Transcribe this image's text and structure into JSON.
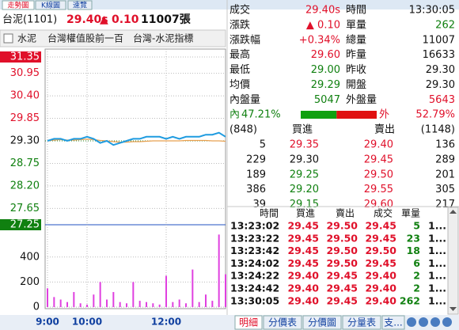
{
  "tabs": [
    "走勢圖",
    "K線圖",
    "速覽"
  ],
  "header": {
    "name": "台泥(1101)",
    "price": "29.40s",
    "arrow": "▲",
    "change": "0.10",
    "volume": "11007張"
  },
  "tags": [
    "水泥",
    "台灣權值股前一百",
    "台灣-水泥指標"
  ],
  "chart": {
    "type": "line",
    "x": [
      "9:00",
      "9:10",
      "9:20",
      "9:30",
      "9:40",
      "9:50",
      "10:00",
      "10:10",
      "10:20",
      "10:30",
      "10:40",
      "10:50",
      "11:00",
      "11:10",
      "11:20",
      "11:30",
      "11:40",
      "11:50",
      "12:00",
      "12:10",
      "12:20",
      "12:30",
      "12:40",
      "12:50",
      "13:00",
      "13:10",
      "13:20",
      "13:30"
    ],
    "series": [
      {
        "color": "#1e9be0",
        "values": [
          29.3,
          29.35,
          29.35,
          29.3,
          29.35,
          29.35,
          29.4,
          29.35,
          29.25,
          29.3,
          29.2,
          29.25,
          29.3,
          29.35,
          29.35,
          29.4,
          29.4,
          29.4,
          29.35,
          29.4,
          29.35,
          29.4,
          29.4,
          29.4,
          29.45,
          29.45,
          29.5,
          29.4
        ]
      },
      {
        "color": "#e8a050",
        "values": [
          29.3,
          29.32,
          29.33,
          29.32,
          29.32,
          29.33,
          29.34,
          29.33,
          29.31,
          29.3,
          29.28,
          29.27,
          29.27,
          29.28,
          29.28,
          29.29,
          29.3,
          29.3,
          29.3,
          29.3,
          29.3,
          29.31,
          29.31,
          29.31,
          29.31,
          29.3,
          29.3,
          29.29
        ]
      }
    ],
    "ylim": [
      27.25,
      31.35
    ],
    "yticks": [
      31.35,
      30.95,
      {
        "value": 30.4,
        "label": "30.40"
      },
      29.85,
      {
        "value": 29.3,
        "label": "29.30"
      },
      28.75,
      {
        "value": 28.2,
        "label": "28.20"
      },
      27.65,
      27.25
    ],
    "volume": {
      "color": "#e040e0",
      "values": [
        150,
        80,
        60,
        40,
        120,
        30,
        20,
        100,
        200,
        60,
        120,
        40,
        30,
        200,
        50,
        40,
        30,
        20,
        250,
        40,
        60,
        30,
        300,
        40,
        100,
        50,
        580,
        262
      ]
    },
    "y2lim": [
      0,
      620
    ],
    "y2ticks": [
      400,
      200,
      0
    ],
    "xticks": [
      "9:00",
      "10:00",
      "12:00"
    ]
  },
  "quote": [
    [
      "成交",
      "29.40s",
      "時間",
      "13:30:05"
    ],
    [
      "漲跌",
      "▲ 0.10",
      "單量",
      "262"
    ],
    [
      "漲跌幅",
      "+0.34%",
      "總量",
      "11007"
    ],
    [
      "最高",
      "29.60",
      "昨量",
      "16633"
    ],
    [
      "最低",
      "29.00",
      "昨收",
      "29.30"
    ],
    [
      "均價",
      "29.29",
      "開盤",
      "29.30"
    ],
    [
      "內盤量",
      "5047",
      "外盤量",
      "5643"
    ]
  ],
  "ratio": {
    "labels": [
      "內",
      "外"
    ],
    "values": [
      47.21,
      52.79
    ],
    "value_labels": [
      "47.21%",
      "52.79%"
    ]
  },
  "order_book": {
    "header": [
      "(848)",
      "買進",
      "賣出",
      "(1148)"
    ],
    "rows": [
      [
        "5",
        "29.35",
        "29.40",
        "136"
      ],
      [
        "229",
        "29.30",
        "29.45",
        "289"
      ],
      [
        "189",
        "29.25",
        "29.50",
        "201"
      ],
      [
        "386",
        "29.20",
        "29.55",
        "305"
      ],
      [
        "39",
        "29.15",
        "29.60",
        "217"
      ]
    ]
  },
  "trades": {
    "header": [
      "時間",
      "買進",
      "賣出",
      "成交",
      "單量"
    ],
    "rows": [
      [
        "13:23:02",
        "29.45",
        "29.50",
        "29.45",
        "5",
        "1..."
      ],
      [
        "13:23:22",
        "29.45",
        "29.50",
        "29.45",
        "23",
        "1..."
      ],
      [
        "13:23:42",
        "29.45",
        "29.50",
        "29.50",
        "18",
        "1..."
      ],
      [
        "13:24:02",
        "29.45",
        "29.50",
        "29.45",
        "6",
        "1..."
      ],
      [
        "13:24:22",
        "29.40",
        "29.45",
        "29.40",
        "2",
        "1..."
      ],
      [
        "13:24:42",
        "29.40",
        "29.45",
        "29.40",
        "2",
        "1..."
      ],
      [
        "13:30:05",
        "29.40",
        "29.45",
        "29.40",
        "262",
        "1..."
      ]
    ]
  },
  "bottom_tabs": [
    "明細",
    "分價表",
    "分價圖",
    "分量表",
    "支..."
  ]
}
